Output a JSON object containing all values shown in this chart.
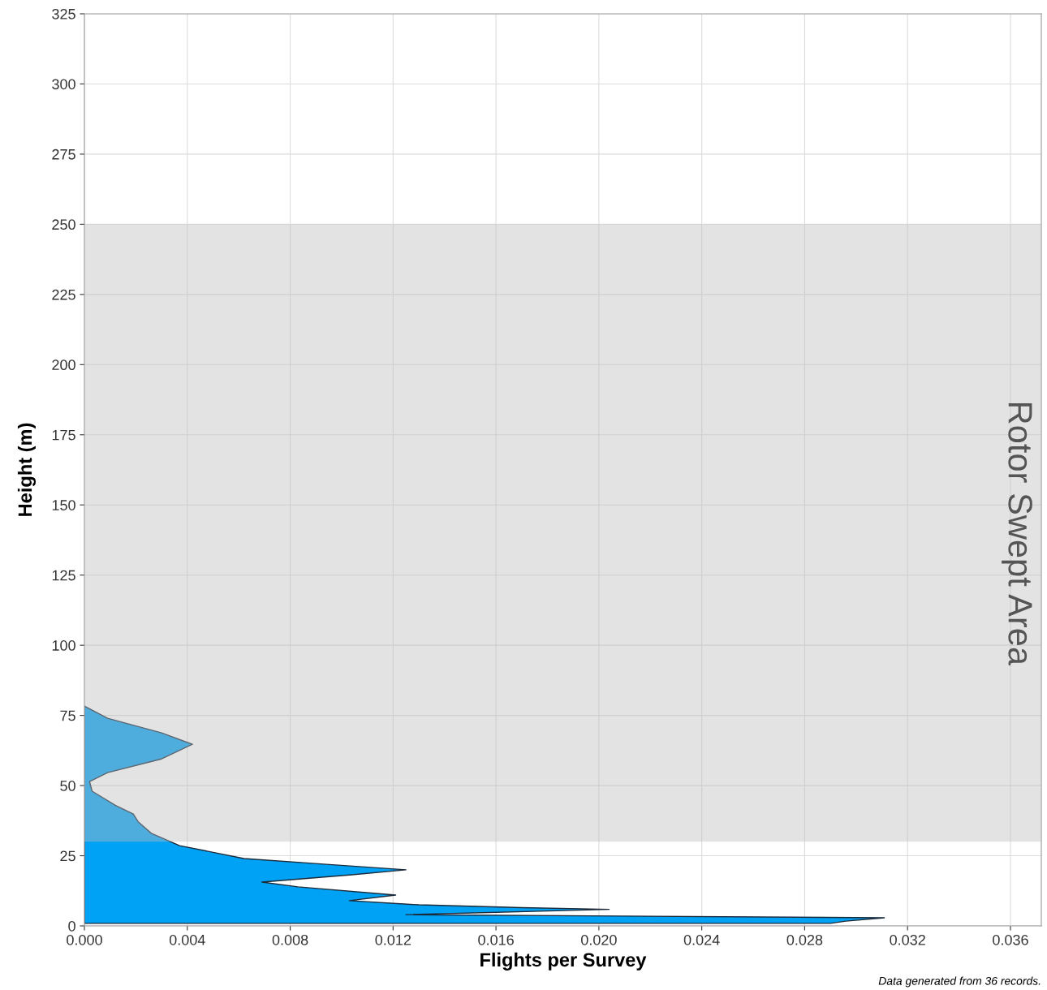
{
  "chart_data": {
    "type": "area",
    "orientation": "horizontal",
    "xlabel": "Flights per Survey",
    "ylabel": "Height (m)",
    "x": [
      78.3,
      74,
      68.8,
      64.7,
      59.5,
      54.6,
      51.4,
      48,
      43,
      39.9,
      37,
      33,
      28.6,
      24,
      22,
      20,
      18.2,
      15.6,
      13.9,
      11,
      9,
      7.5,
      6.5,
      5.9,
      4,
      2.9,
      1.7,
      0.9
    ],
    "series": [
      {
        "color": "#00a2f5",
        "values": [
          0,
          0.0009,
          0.003,
          0.0042,
          0.003,
          0.0009,
          0.0002,
          0.0003,
          0.0012,
          0.0019,
          0.0021,
          0.0026,
          0.0037,
          0.0062,
          0.0093,
          0.0125,
          0.0104,
          0.0069,
          0.0083,
          0.0121,
          0.0103,
          0.013,
          0.017,
          0.0204,
          0.0125,
          0.0311,
          0.0296,
          0.029
        ]
      }
    ],
    "xlim": [
      0,
      0.0372
    ],
    "ylim": [
      0,
      325
    ],
    "xticks": [
      {
        "value": 0,
        "label": "0.000"
      },
      {
        "value": 0.004,
        "label": "0.004"
      },
      {
        "value": 0.008,
        "label": "0.008"
      },
      {
        "value": 0.012,
        "label": "0.012"
      },
      {
        "value": 0.016,
        "label": "0.016"
      },
      {
        "value": 0.02,
        "label": "0.020"
      },
      {
        "value": 0.024,
        "label": "0.024"
      },
      {
        "value": 0.028,
        "label": "0.028"
      },
      {
        "value": 0.032,
        "label": "0.032"
      },
      {
        "value": 0.036,
        "label": "0.036"
      }
    ],
    "yticks": [
      0,
      25,
      50,
      75,
      100,
      125,
      150,
      175,
      200,
      225,
      250,
      275,
      300,
      325
    ],
    "bands": [
      {
        "axis": "y",
        "from": 30,
        "to": 250,
        "label": "Rotor Swept Area",
        "color": "#bdbdbd"
      }
    ],
    "grid": true,
    "legend": false,
    "annotations": [
      "Data generated from 36 records."
    ]
  }
}
